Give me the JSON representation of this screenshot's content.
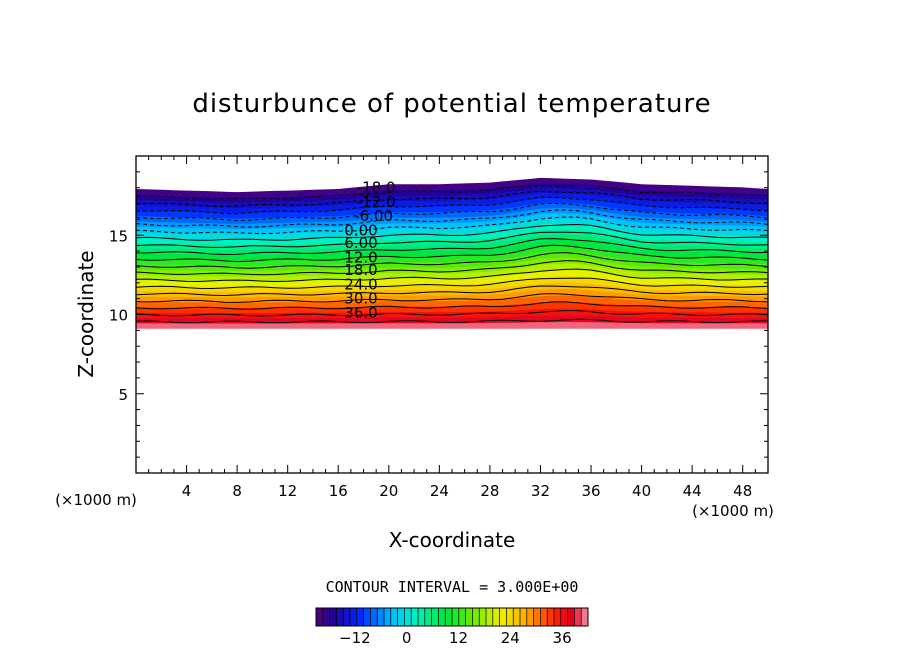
{
  "chart_data": {
    "type": "contour",
    "title": "disturbunce of potential temperature",
    "xlabel": "X-coordinate",
    "ylabel": "Z-coordinate",
    "x_unit": "(×1000 m)",
    "y_unit": "(×1000 m)",
    "xlim": [
      0,
      50
    ],
    "ylim": [
      0,
      20
    ],
    "x_ticks": [
      4,
      8,
      12,
      16,
      20,
      24,
      28,
      32,
      36,
      40,
      44,
      48
    ],
    "y_ticks": [
      5,
      10,
      15
    ],
    "contour_interval_text": "CONTOUR INTERVAL = 3.000E+00",
    "contour_interval": 3.0,
    "field_bottom_z": 9.1,
    "field_top_z": [
      [
        0,
        17.9
      ],
      [
        4,
        17.8
      ],
      [
        8,
        17.7
      ],
      [
        12,
        17.8
      ],
      [
        16,
        17.9
      ],
      [
        20,
        18.2
      ],
      [
        24,
        18.2
      ],
      [
        28,
        18.3
      ],
      [
        32,
        18.6
      ],
      [
        36,
        18.5
      ],
      [
        40,
        18.2
      ],
      [
        44,
        18.1
      ],
      [
        48,
        18.0
      ],
      [
        50,
        17.9
      ]
    ],
    "contour_labels": [
      {
        "text": "-18.0",
        "x": 19.0,
        "z": 18.0
      },
      {
        "text": "-12.0",
        "x": 19.0,
        "z": 17.1
      },
      {
        "text": "-6.00",
        "x": 18.8,
        "z": 16.2
      },
      {
        "text": "0.00",
        "x": 17.8,
        "z": 15.3
      },
      {
        "text": "6.00",
        "x": 17.8,
        "z": 14.5
      },
      {
        "text": "12.0",
        "x": 17.8,
        "z": 13.6
      },
      {
        "text": "18.0",
        "x": 17.8,
        "z": 12.8
      },
      {
        "text": "24.0",
        "x": 17.8,
        "z": 11.9
      },
      {
        "text": "30.0",
        "x": 17.8,
        "z": 11.0
      },
      {
        "text": "36.0",
        "x": 17.8,
        "z": 10.1
      }
    ],
    "colorbar": {
      "range": [
        -21,
        42
      ],
      "tick_values": [
        -12,
        0,
        12,
        24,
        36
      ],
      "tick_labels": [
        "−12",
        "0",
        "12",
        "24",
        "36"
      ]
    }
  }
}
